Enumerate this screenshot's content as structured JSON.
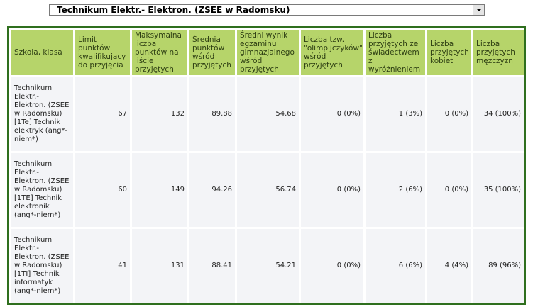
{
  "select": {
    "selected": "Technikum Elektr.- Elektron. (ZSEE w Radomsku)"
  },
  "table": {
    "headers": [
      "Szkoła, klasa",
      "Limit punktów kwalifikujący do przyjęcia",
      "Maksymalna liczba punktów na liście przyjętych",
      "Średnia punktów wśród przyjętych",
      "Średni wynik egzaminu gimnazjalnego wśród przyjętych",
      "Liczba tzw. \"olimpijczyków\" wśród przyjętych",
      "Liczba przyjętych ze świadectwem z wyróżnieniem",
      "Liczba przyjętych kobiet",
      "Liczba przyjętych mężczyzn"
    ],
    "rows": [
      [
        "Technikum Elektr.- Elektron. (ZSEE w Radomsku) [1Te] Technik elektryk (ang*-niem*)",
        "67",
        "132",
        "89.88",
        "54.68",
        "0 (0%)",
        "1 (3%)",
        "0 (0%)",
        "34 (100%)"
      ],
      [
        "Technikum Elektr.- Elektron. (ZSEE w Radomsku) [1TE] Technik elektronik (ang*-niem*)",
        "60",
        "149",
        "94.26",
        "56.74",
        "0 (0%)",
        "2 (6%)",
        "0 (0%)",
        "35 (100%)"
      ],
      [
        "Technikum Elektr.- Elektron. (ZSEE w Radomsku) [1TI] Technik informatyk (ang*-niem*)",
        "41",
        "131",
        "88.41",
        "54.21",
        "0 (0%)",
        "6 (6%)",
        "4 (4%)",
        "89 (96%)"
      ]
    ]
  }
}
